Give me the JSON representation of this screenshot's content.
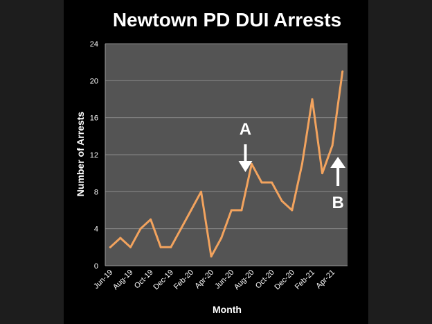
{
  "chart_data": {
    "type": "line",
    "title": "Newtown PD DUI Arrests",
    "xlabel": "Month",
    "ylabel": "Number of Arrests",
    "ylim": [
      0,
      24
    ],
    "yticks": [
      0,
      4,
      8,
      12,
      16,
      20,
      24
    ],
    "grid": true,
    "x": [
      "Jun-19",
      "Jul-19",
      "Aug-19",
      "Sep-19",
      "Oct-19",
      "Nov-19",
      "Dec-19",
      "Jan-20",
      "Feb-20",
      "Mar-20",
      "Apr-20",
      "May-20",
      "Jun-20",
      "Jul-20",
      "Aug-20",
      "Sep-20",
      "Oct-20",
      "Nov-20",
      "Dec-20",
      "Jan-21",
      "Feb-21",
      "Mar-21",
      "Apr-21",
      "May-21"
    ],
    "xtick_labels": [
      "Jun-19",
      "Aug-19",
      "Oct-19",
      "Dec-19",
      "Feb-20",
      "Apr-20",
      "Jun-20",
      "Aug-20",
      "Oct-20",
      "Dec-20",
      "Feb-21",
      "Apr-21"
    ],
    "series": [
      {
        "values": [
          2,
          3,
          2,
          4,
          5,
          2,
          2,
          4,
          6,
          8,
          1,
          3,
          6,
          6,
          11,
          9,
          9,
          7,
          6,
          11,
          18,
          10,
          13,
          21
        ]
      }
    ],
    "colors": {
      "line": "#f2a35e",
      "plot_bg": "#545454",
      "grid": "#8a8a8a",
      "background": "#000000"
    },
    "annotations": [
      {
        "label": "A",
        "arrow": "down",
        "x": "Aug-20"
      },
      {
        "label": "B",
        "arrow": "up",
        "x": "Apr-21"
      }
    ]
  }
}
